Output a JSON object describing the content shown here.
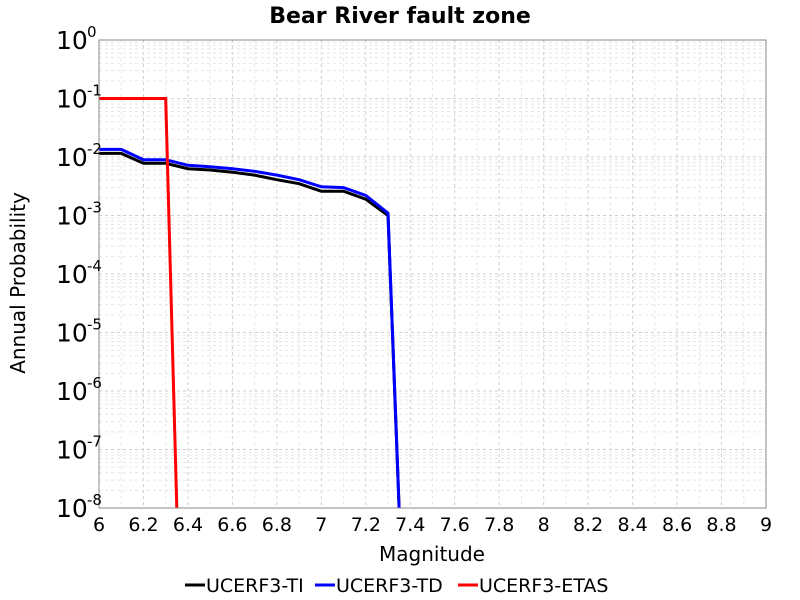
{
  "chart_data": {
    "type": "line",
    "title": "Bear River fault zone",
    "xlabel": "Magnitude",
    "ylabel": "Annual Probability",
    "xlim": [
      6,
      9
    ],
    "ylim": [
      1e-08,
      1
    ],
    "yscale": "log",
    "grid": true,
    "legend_position": "bottom",
    "x_ticks": [
      "6",
      "6.2",
      "6.4",
      "6.6",
      "6.8",
      "7",
      "7.2",
      "7.4",
      "7.6",
      "7.8",
      "8",
      "8.2",
      "8.4",
      "8.6",
      "8.8",
      "9"
    ],
    "y_ticks": [
      {
        "base": "10",
        "exp": "0",
        "value": 1
      },
      {
        "base": "10",
        "exp": "-1",
        "value": 0.1
      },
      {
        "base": "10",
        "exp": "-2",
        "value": 0.01
      },
      {
        "base": "10",
        "exp": "-3",
        "value": 0.001
      },
      {
        "base": "10",
        "exp": "-4",
        "value": 0.0001
      },
      {
        "base": "10",
        "exp": "-5",
        "value": 1e-05
      },
      {
        "base": "10",
        "exp": "-6",
        "value": 1e-06
      },
      {
        "base": "10",
        "exp": "-7",
        "value": 1e-07
      },
      {
        "base": "10",
        "exp": "-8",
        "value": 1e-08
      }
    ],
    "series": [
      {
        "name": "UCERF3-TI",
        "color": "#000000",
        "x": [
          6.0,
          6.1,
          6.2,
          6.3,
          6.4,
          6.5,
          6.6,
          6.7,
          6.8,
          6.9,
          7.0,
          7.1,
          7.2,
          7.3,
          7.35
        ],
        "y": [
          0.0115,
          0.0115,
          0.0078,
          0.0078,
          0.0063,
          0.006,
          0.0055,
          0.0049,
          0.0041,
          0.0035,
          0.0026,
          0.0026,
          0.0019,
          0.001,
          1e-08
        ]
      },
      {
        "name": "UCERF3-TD",
        "color": "#0000ff",
        "x": [
          6.0,
          6.1,
          6.2,
          6.3,
          6.4,
          6.5,
          6.6,
          6.7,
          6.8,
          6.9,
          7.0,
          7.1,
          7.2,
          7.3,
          7.35
        ],
        "y": [
          0.0135,
          0.0135,
          0.009,
          0.009,
          0.0072,
          0.0068,
          0.0063,
          0.0057,
          0.0049,
          0.0041,
          0.0031,
          0.003,
          0.0022,
          0.0011,
          1e-08
        ]
      },
      {
        "name": "UCERF3-ETAS",
        "color": "#ff0000",
        "x": [
          6.0,
          6.3,
          6.35
        ],
        "y": [
          0.1,
          0.1,
          1e-08
        ]
      }
    ]
  }
}
